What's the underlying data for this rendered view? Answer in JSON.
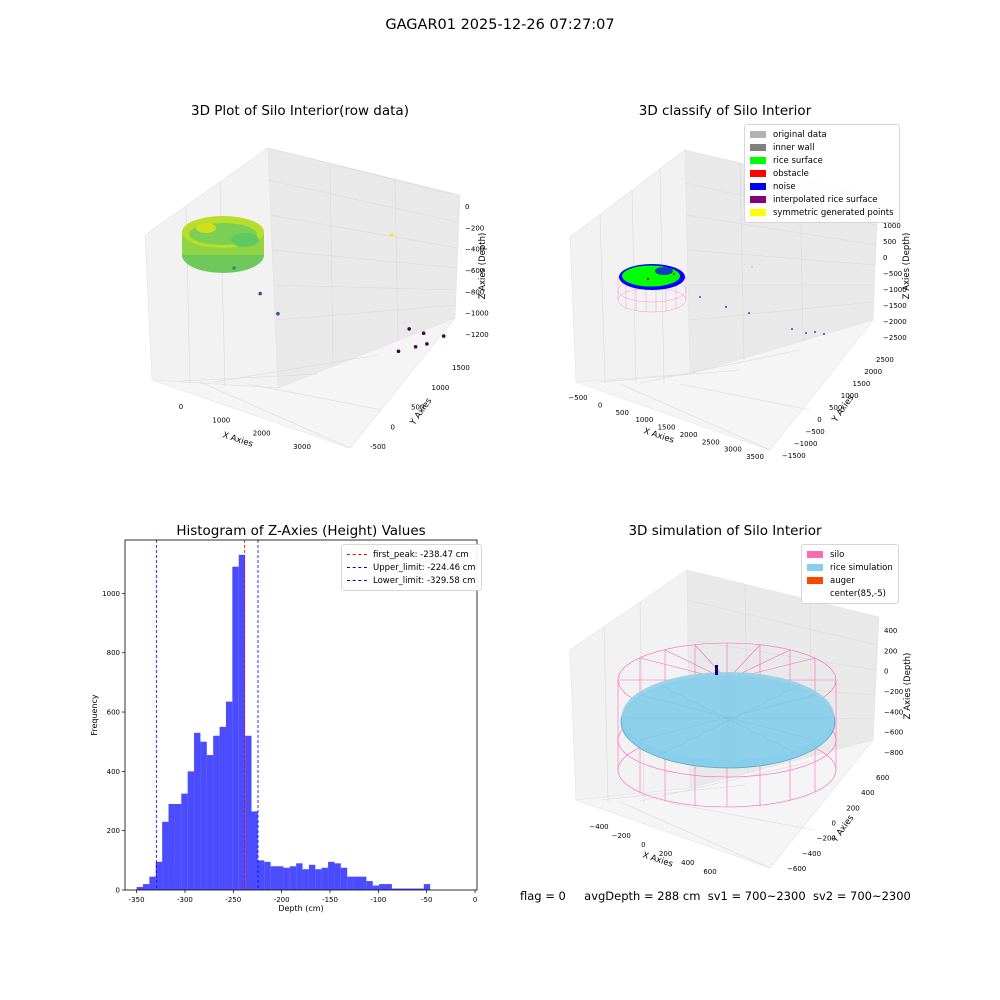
{
  "figure": {
    "title": "GAGAR01 2025-12-26 07:27:07",
    "footer": {
      "flag": "flag = 0",
      "avg_depth": "avgDepth = 288 cm",
      "sv1": "sv1 = 700~2300",
      "sv2": "sv2 = 700~2300"
    }
  },
  "chart_data": [
    {
      "type": "scatter",
      "projection": "3d",
      "title": "3D Plot of Silo Interior(row data)",
      "xlabel": "X Axies",
      "ylabel": "Y Axies",
      "zlabel": "Z Axies (Depth)",
      "x_ticks": [
        "0",
        "1000",
        "2000",
        "3000"
      ],
      "y_ticks": [
        "-500",
        "0",
        "500",
        "1000",
        "1500"
      ],
      "z_ticks": [
        "0",
        "−200",
        "−400",
        "−600",
        "−800",
        "−1000",
        "−1200"
      ],
      "colormap": "viridis",
      "points": [
        {
          "x": 2500,
          "y": 1300,
          "z": -180
        },
        {
          "x": 450,
          "y": 600,
          "z": -700
        },
        {
          "x": 900,
          "y": 600,
          "z": -900
        },
        {
          "x": 1300,
          "y": 500,
          "z": -1000
        },
        {
          "x": 2900,
          "y": 1200,
          "z": -1150
        },
        {
          "x": 3100,
          "y": 1250,
          "z": -1180
        },
        {
          "x": 3000,
          "y": 900,
          "z": -1250
        },
        {
          "x": 3200,
          "y": 1000,
          "z": -1200
        },
        {
          "x": 3300,
          "y": 1100,
          "z": -1190
        },
        {
          "x": 3400,
          "y": 1300,
          "z": -1170
        }
      ]
    },
    {
      "type": "scatter",
      "projection": "3d",
      "title": "3D classify of Silo Interior",
      "xlabel": "X Axies",
      "ylabel": "Y Axies",
      "zlabel": "Z Axies (Depth)",
      "x_ticks": [
        "−500",
        "0",
        "500",
        "1000",
        "1500",
        "2000",
        "2500",
        "3000",
        "3500"
      ],
      "y_ticks": [
        "−1500",
        "−1000",
        "−500",
        "0",
        "500",
        "1000",
        "1500",
        "2000",
        "2500"
      ],
      "z_ticks": [
        "1000",
        "500",
        "0",
        "−500",
        "−1000",
        "−1500",
        "−2000",
        "−2500"
      ],
      "legend_position": "top-right",
      "legend": [
        {
          "label": "original data",
          "color": "#b3b3b3"
        },
        {
          "label": "inner wall",
          "color": "#808080"
        },
        {
          "label": "rice surface",
          "color": "#00ff00"
        },
        {
          "label": "obstacle",
          "color": "#ff0000"
        },
        {
          "label": "noise",
          "color": "#0000ff"
        },
        {
          "label": "interpolated rice surface",
          "color": "#800080"
        },
        {
          "label": "symmetric generated points",
          "color": "#ffff00"
        }
      ]
    },
    {
      "type": "bar",
      "title": "Histogram of Z-Axies (Height) Values",
      "xlabel": "Depth (cm)",
      "ylabel": "Frequency",
      "xlim": [
        -362,
        2
      ],
      "ylim": [
        0,
        1180
      ],
      "x_ticks": [
        -350,
        -300,
        -250,
        -200,
        -150,
        -100,
        -50,
        0
      ],
      "y_ticks": [
        0,
        200,
        400,
        600,
        800,
        1000
      ],
      "bar_color": "#0000ff",
      "bin_width": 6.6,
      "bin_start": -350,
      "counts": [
        10,
        20,
        45,
        95,
        230,
        290,
        290,
        325,
        400,
        530,
        500,
        455,
        520,
        550,
        635,
        1090,
        1130,
        520,
        265,
        100,
        95,
        80,
        80,
        75,
        80,
        90,
        70,
        85,
        70,
        75,
        95,
        90,
        75,
        45,
        45,
        45,
        30,
        15,
        20,
        20,
        5,
        5,
        5,
        5,
        5,
        20
      ],
      "legend_position": "top-right",
      "lines": [
        {
          "label": "first_peak: -238.47 cm",
          "x": -238.47,
          "color": "#ff0000"
        },
        {
          "label": "Upper_limit: -224.46 cm",
          "x": -224.46,
          "color": "#0000ff"
        },
        {
          "label": "Lower_limit: -329.58 cm",
          "x": -329.58,
          "color": "#0000ff"
        }
      ]
    },
    {
      "type": "surface",
      "projection": "3d",
      "title": "3D simulation of Silo Interior",
      "xlabel": "X Axies",
      "ylabel": "Y Axies",
      "zlabel": "Z Axies (Depth)",
      "x_ticks": [
        "−400",
        "−200",
        "0",
        "200",
        "400",
        "600"
      ],
      "y_ticks": [
        "−600",
        "−400",
        "−200",
        "0",
        "200",
        "400",
        "600"
      ],
      "z_ticks": [
        "400",
        "200",
        "0",
        "−200",
        "−400",
        "−600",
        "−800"
      ],
      "legend_position": "top-right",
      "legend": [
        {
          "label": "silo",
          "color": "#ff69b4"
        },
        {
          "label": "rice simulation",
          "color": "#87ceeb"
        },
        {
          "label": "auger",
          "color": "#ff4500"
        },
        {
          "label": "center(85,-5)",
          "color": "#ffffff"
        }
      ]
    }
  ]
}
